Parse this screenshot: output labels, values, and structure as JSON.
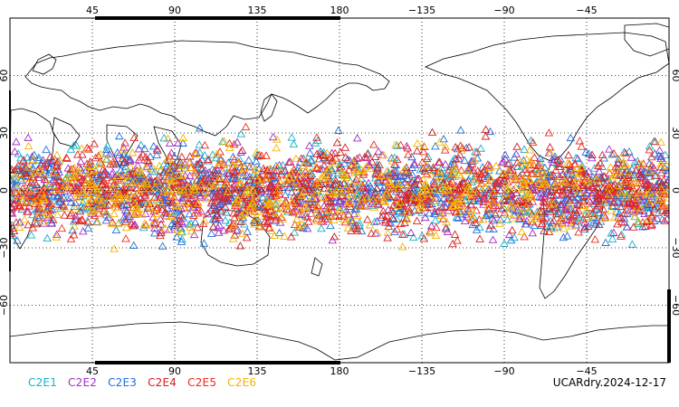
{
  "map": {
    "projection": "equirectangular",
    "center_longitude": 180,
    "lon_range": [
      0,
      360
    ],
    "lat_range": [
      -90,
      90
    ],
    "grid": "dotted",
    "marker": "open-triangle",
    "top_ticks": [
      "45",
      "90",
      "135",
      "180",
      "−135",
      "−90",
      "−45"
    ],
    "bottom_ticks": [
      "45",
      "90",
      "135",
      "180",
      "−135",
      "−90",
      "−45"
    ],
    "left_ticks": [
      "60",
      "30",
      "0",
      "−30",
      "−60"
    ],
    "right_ticks": [
      "60",
      "30",
      "0",
      "−30",
      "−60"
    ],
    "tick_values_lon": [
      45,
      90,
      135,
      180,
      225,
      270,
      315
    ],
    "tick_values_lat": [
      60,
      30,
      0,
      -30,
      -60
    ],
    "point_density_band_lat": [
      -45,
      45
    ],
    "points_per_series": 560
  },
  "legend": [
    {
      "label": "C2E1",
      "color": "#17b0c8"
    },
    {
      "label": "C2E2",
      "color": "#a12ec6"
    },
    {
      "label": "C2E3",
      "color": "#1f6fd6"
    },
    {
      "label": "C2E4",
      "color": "#d22020"
    },
    {
      "label": "C2E5",
      "color": "#ee2a1c"
    },
    {
      "label": "C2E6",
      "color": "#f4b400"
    }
  ],
  "footer": {
    "label": "UCARdry.2024-12-17"
  }
}
